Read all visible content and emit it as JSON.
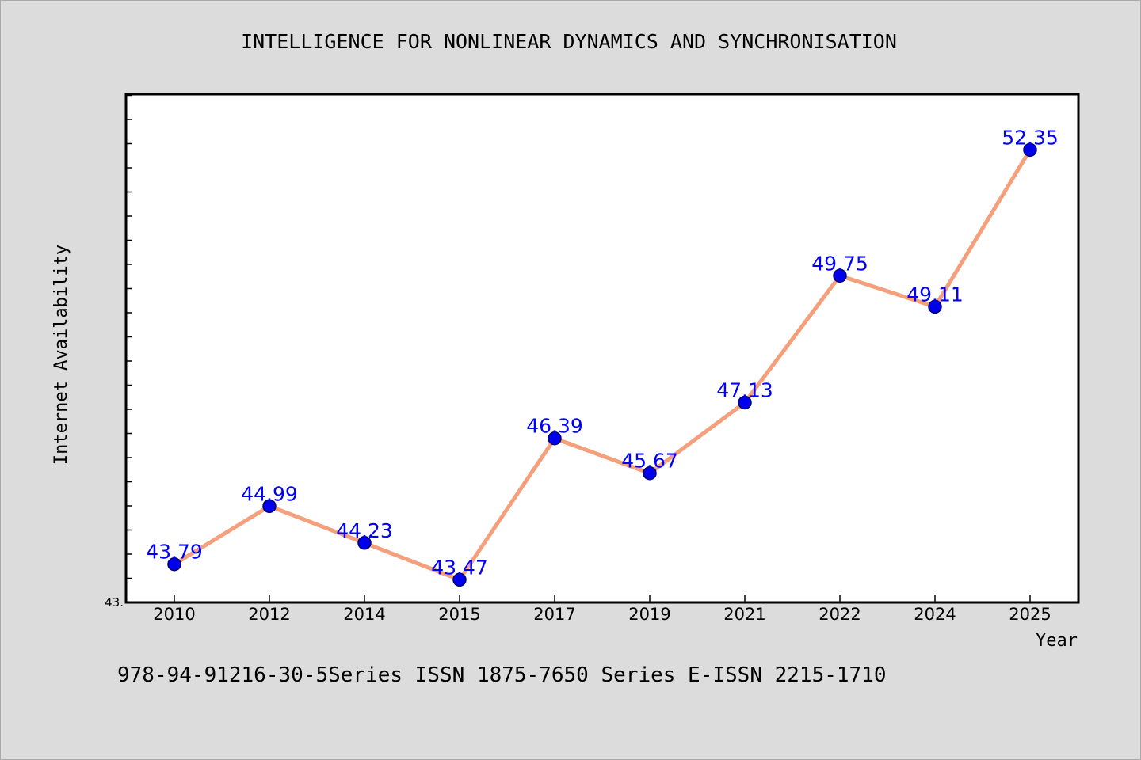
{
  "chart_data": {
    "type": "line",
    "title": "INTELLIGENCE FOR NONLINEAR DYNAMICS AND SYNCHRONISATION",
    "xlabel": "Year",
    "ylabel": "Internet Availability",
    "ymin_label": "43.",
    "categories": [
      "2010",
      "2012",
      "2014",
      "2015",
      "2017",
      "2019",
      "2021",
      "2022",
      "2024",
      "2025"
    ],
    "values": [
      43.79,
      44.99,
      44.23,
      43.47,
      46.39,
      45.67,
      47.13,
      49.75,
      49.11,
      52.35
    ],
    "data_labels": [
      "43.79",
      "44.99",
      "44.23",
      "43.47",
      "46.39",
      "45.67",
      "47.13",
      "49.75",
      "49.11",
      "52.35"
    ],
    "ylim": [
      43.0,
      53.5
    ],
    "line_color": "#f4a07c",
    "marker_color": "#0000ee",
    "label_color": "#0000ff",
    "grid": false,
    "legend": "none"
  },
  "footer": {
    "text": "978-94-91216-30-5Series ISSN 1875-7650 Series E-ISSN 2215-1710"
  }
}
